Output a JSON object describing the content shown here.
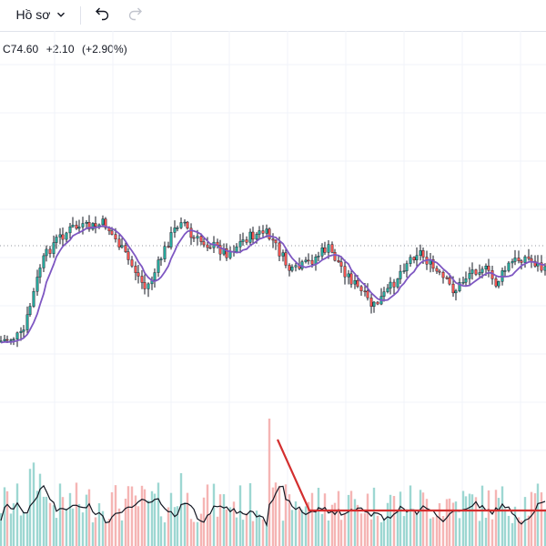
{
  "toolbar": {
    "profile_label": "Hồ sơ",
    "profile_dropdown_icon": "chevron-down-icon",
    "undo_icon": "undo-icon",
    "redo_icon": "redo-icon"
  },
  "legend": {
    "close_label": "C74.60",
    "change": "+2.10",
    "change_percent": "(+2.90%)"
  },
  "colors": {
    "up": "#26a69a",
    "down": "#ef5350",
    "ma": "#7e57c2",
    "volume_ma": "#131722",
    "trendline": "#d32f2f",
    "grid": "#f0f3fa",
    "background": "#ffffff"
  },
  "chart_data": {
    "type": "candlestick",
    "price_range_visible": [
      20,
      170
    ],
    "reference_line_price": 113,
    "moving_average_line": true,
    "volume_panel": true,
    "volume_ma_line": true,
    "trendline": true,
    "grid": true
  }
}
